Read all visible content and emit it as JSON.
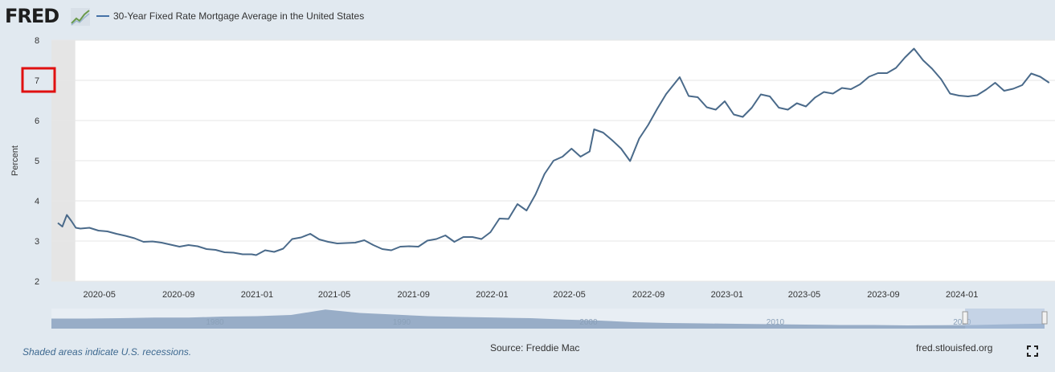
{
  "header": {
    "logo_text": "FRED",
    "logo_icon": "line-chart-icon",
    "legend_label": "30-Year Fixed Rate Mortgage Average in the United States"
  },
  "chart_data": {
    "type": "line",
    "title": "",
    "ylabel": "Percent",
    "xlabel": "",
    "ylim": [
      2,
      8
    ],
    "yticks": [
      "2",
      "3",
      "4",
      "5",
      "6",
      "7",
      "8"
    ],
    "xticks": [
      "2020-05",
      "2020-09",
      "2021-01",
      "2021-05",
      "2021-09",
      "2022-01",
      "2022-05",
      "2022-09",
      "2023-01",
      "2023-05",
      "2023-09",
      "2024-01"
    ],
    "grid": "horizontal",
    "highlighted_tick": "7",
    "series": [
      {
        "name": "30-Year Fixed Rate Mortgage Average in the United States",
        "color": "#4a6a8a",
        "x": [
          "2020-03-05",
          "2020-03-12",
          "2020-03-19",
          "2020-03-26",
          "2020-04-02",
          "2020-04-09",
          "2020-04-23",
          "2020-05-07",
          "2020-05-21",
          "2020-06-04",
          "2020-06-18",
          "2020-07-02",
          "2020-07-16",
          "2020-07-30",
          "2020-08-13",
          "2020-08-27",
          "2020-09-10",
          "2020-09-24",
          "2020-10-08",
          "2020-10-22",
          "2020-11-05",
          "2020-11-19",
          "2020-12-03",
          "2020-12-17",
          "2020-12-31",
          "2021-01-07",
          "2021-01-21",
          "2021-02-04",
          "2021-02-18",
          "2021-03-04",
          "2021-03-18",
          "2021-04-01",
          "2021-04-15",
          "2021-04-29",
          "2021-05-13",
          "2021-05-27",
          "2021-06-10",
          "2021-06-24",
          "2021-07-08",
          "2021-07-22",
          "2021-08-05",
          "2021-08-19",
          "2021-09-02",
          "2021-09-16",
          "2021-09-30",
          "2021-10-14",
          "2021-10-28",
          "2021-11-11",
          "2021-11-25",
          "2021-12-09",
          "2021-12-23",
          "2022-01-06",
          "2022-01-20",
          "2022-02-03",
          "2022-02-17",
          "2022-03-03",
          "2022-03-17",
          "2022-03-31",
          "2022-04-14",
          "2022-04-28",
          "2022-05-12",
          "2022-05-26",
          "2022-06-09",
          "2022-06-16",
          "2022-06-30",
          "2022-07-14",
          "2022-07-28",
          "2022-08-11",
          "2022-08-25",
          "2022-09-08",
          "2022-09-22",
          "2022-10-06",
          "2022-10-20",
          "2022-10-27",
          "2022-11-10",
          "2022-11-24",
          "2022-12-08",
          "2022-12-22",
          "2023-01-05",
          "2023-01-19",
          "2023-02-02",
          "2023-02-16",
          "2023-03-02",
          "2023-03-16",
          "2023-03-30",
          "2023-04-13",
          "2023-04-27",
          "2023-05-11",
          "2023-05-25",
          "2023-06-08",
          "2023-06-22",
          "2023-07-06",
          "2023-07-20",
          "2023-08-03",
          "2023-08-17",
          "2023-08-31",
          "2023-09-14",
          "2023-09-28",
          "2023-10-12",
          "2023-10-26",
          "2023-11-09",
          "2023-11-23",
          "2023-12-07",
          "2023-12-21",
          "2024-01-04",
          "2024-01-18",
          "2024-02-01",
          "2024-02-15",
          "2024-02-29",
          "2024-03-14",
          "2024-03-28",
          "2024-04-11",
          "2024-04-25",
          "2024-05-09",
          "2024-05-23"
        ],
        "values": [
          3.45,
          3.36,
          3.65,
          3.5,
          3.33,
          3.31,
          3.33,
          3.26,
          3.24,
          3.18,
          3.13,
          3.07,
          2.98,
          2.99,
          2.96,
          2.91,
          2.86,
          2.9,
          2.87,
          2.8,
          2.78,
          2.72,
          2.71,
          2.67,
          2.67,
          2.65,
          2.77,
          2.73,
          2.81,
          3.05,
          3.09,
          3.18,
          3.04,
          2.98,
          2.94,
          2.95,
          2.96,
          3.02,
          2.9,
          2.8,
          2.77,
          2.86,
          2.87,
          2.86,
          3.01,
          3.05,
          3.14,
          2.98,
          3.1,
          3.1,
          3.05,
          3.22,
          3.56,
          3.55,
          3.92,
          3.76,
          4.16,
          4.67,
          5.0,
          5.1,
          5.3,
          5.1,
          5.23,
          5.78,
          5.7,
          5.51,
          5.3,
          4.99,
          5.55,
          5.89,
          6.29,
          6.66,
          6.94,
          7.08,
          6.61,
          6.58,
          6.33,
          6.27,
          6.48,
          6.15,
          6.09,
          6.32,
          6.65,
          6.6,
          6.32,
          6.27,
          6.43,
          6.35,
          6.57,
          6.71,
          6.67,
          6.81,
          6.78,
          6.9,
          7.09,
          7.18,
          7.18,
          7.31,
          7.57,
          7.79,
          7.5,
          7.29,
          7.03,
          6.67,
          6.62,
          6.6,
          6.63,
          6.77,
          6.94,
          6.74,
          6.79,
          6.88,
          7.17,
          7.09,
          6.94
        ]
      }
    ],
    "navigator": {
      "xticks": [
        "1980",
        "1990",
        "2000",
        "2010",
        "2020"
      ],
      "selected_range": [
        "2020-03",
        "2024-05"
      ]
    }
  },
  "footer": {
    "recession_note": "Shaded areas indicate U.S. recessions.",
    "source": "Source: Freddie Mac",
    "credit": "fred.stlouisfed.org",
    "fullscreen_icon": "fullscreen-icon"
  }
}
